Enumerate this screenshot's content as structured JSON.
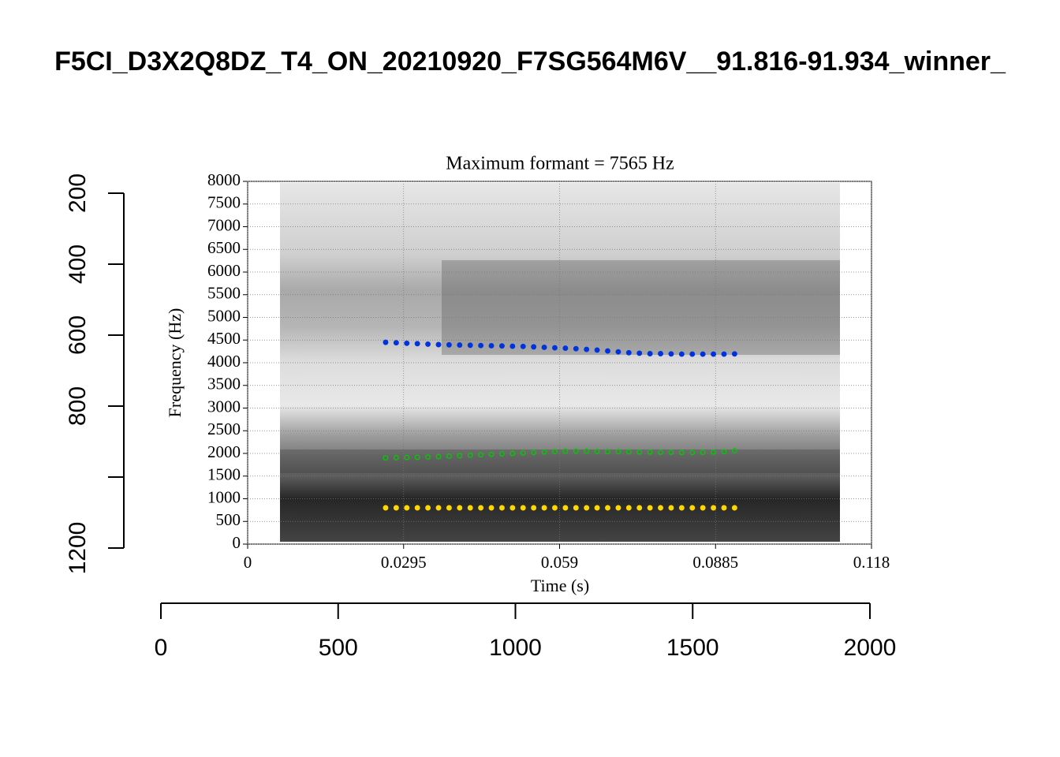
{
  "chart_data": [
    {
      "type": "formant",
      "title": "Maximum formant  =  7565 Hz",
      "xlabel": "Time (s)",
      "ylabel": "Frequency (Hz)",
      "xlim": [
        0,
        0.118
      ],
      "xticks": [
        0,
        0.0295,
        0.059,
        0.0885,
        0.118
      ],
      "ylim": [
        0,
        8000
      ],
      "yticks": [
        0,
        500,
        1000,
        1500,
        2000,
        2500,
        3000,
        3500,
        4000,
        4500,
        5000,
        5500,
        6000,
        6500,
        7000,
        7500,
        8000
      ],
      "grid": true,
      "x": [
        0.0261,
        0.0281,
        0.0301,
        0.0321,
        0.0341,
        0.0361,
        0.0381,
        0.0401,
        0.0421,
        0.0441,
        0.0461,
        0.0481,
        0.0501,
        0.0521,
        0.0541,
        0.0561,
        0.0581,
        0.0601,
        0.0621,
        0.0641,
        0.0661,
        0.0681,
        0.0701,
        0.0721,
        0.0741,
        0.0761,
        0.0781,
        0.0801,
        0.0821,
        0.0841,
        0.0861,
        0.0881,
        0.0901,
        0.0921
      ],
      "series": [
        {
          "color": "#ffd700",
          "filled": true,
          "values": [
            800,
            800,
            800,
            800,
            800,
            800,
            800,
            800,
            800,
            800,
            800,
            800,
            800,
            800,
            800,
            800,
            800,
            800,
            800,
            800,
            800,
            800,
            800,
            800,
            800,
            800,
            800,
            800,
            800,
            800,
            800,
            800,
            800,
            800
          ]
        },
        {
          "color": "#00cc00",
          "filled": false,
          "values": [
            1900,
            1905,
            1910,
            1915,
            1920,
            1930,
            1940,
            1950,
            1960,
            1970,
            1980,
            1990,
            2000,
            2010,
            2020,
            2030,
            2040,
            2050,
            2050,
            2050,
            2045,
            2040,
            2040,
            2035,
            2030,
            2030,
            2025,
            2025,
            2020,
            2020,
            2025,
            2030,
            2040,
            2060
          ]
        },
        {
          "color": "#0033dd",
          "filled": true,
          "values": [
            4450,
            4440,
            4430,
            4420,
            4410,
            4400,
            4395,
            4390,
            4385,
            4380,
            4375,
            4370,
            4365,
            4360,
            4350,
            4340,
            4330,
            4320,
            4310,
            4295,
            4280,
            4260,
            4240,
            4220,
            4210,
            4200,
            4200,
            4195,
            4190,
            4190,
            4190,
            4190,
            4190,
            4195
          ]
        }
      ]
    },
    {
      "type": "axes",
      "title": "F5CI_D3X2Q8DZ_T4_ON_20210920_F7SG564M6V__91.816-91.934_winner_",
      "xlim": [
        0,
        2000
      ],
      "xticks": [
        0,
        500,
        1000,
        1500,
        2000
      ],
      "ylim": [
        1200,
        200
      ],
      "yticks": [
        200,
        400,
        600,
        800,
        {
          "value": 1000,
          "label": null
        },
        1200
      ]
    }
  ]
}
